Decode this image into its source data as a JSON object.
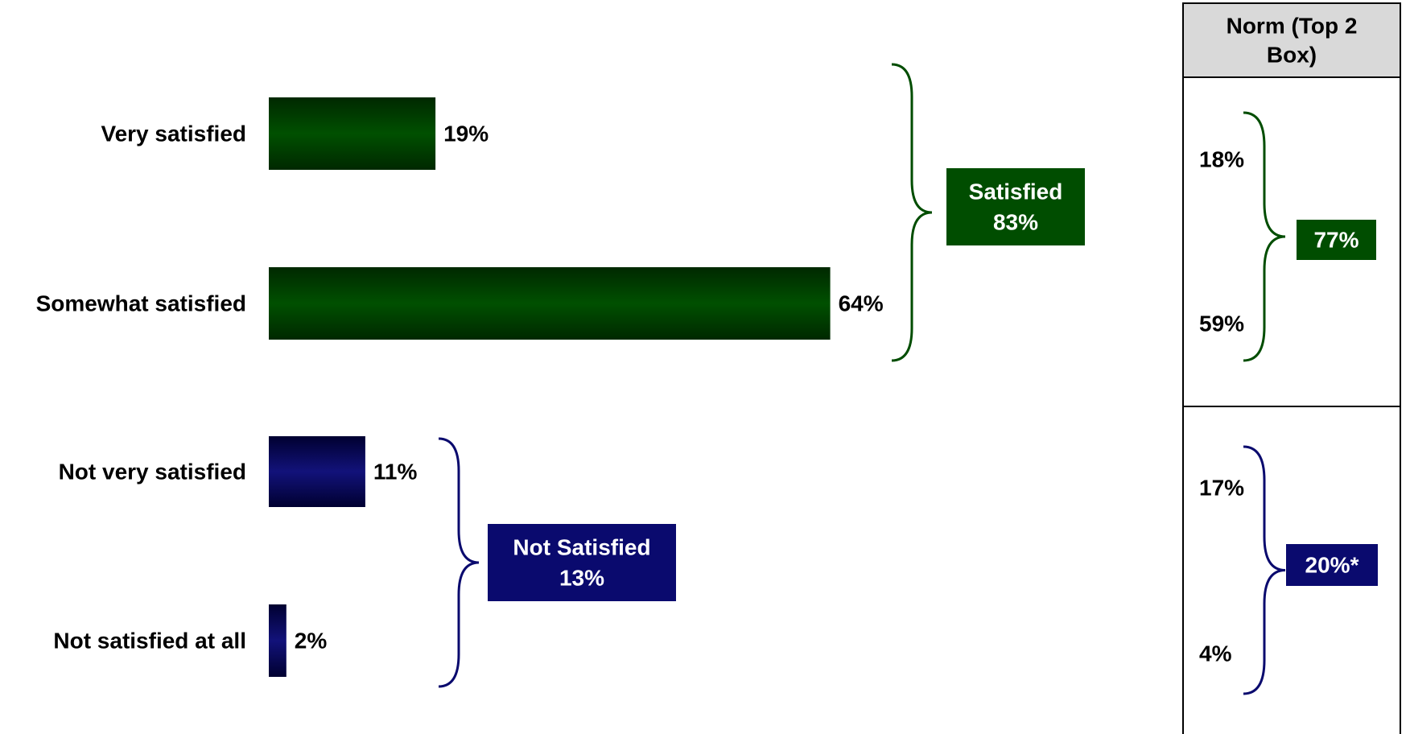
{
  "chart_data": {
    "type": "bar",
    "orientation": "horizontal",
    "title": "",
    "xlabel": "",
    "ylabel": "",
    "grid": false,
    "categories": [
      "Very satisfied",
      "Somewhat satisfied",
      "Not very satisfied",
      "Not satisfied at all"
    ],
    "values": [
      19,
      64,
      11,
      2
    ],
    "value_labels": [
      "19%",
      "64%",
      "11%",
      "2%"
    ],
    "xlim": [
      0,
      100
    ],
    "groups": [
      {
        "label": "Satisfied",
        "value_label": "83%",
        "value": 83,
        "members": [
          0,
          1
        ],
        "color": "#004d00"
      },
      {
        "label": "Not Satisfied",
        "value_label": "13%",
        "value": 13,
        "members": [
          2,
          3
        ],
        "color": "#0a0a6e"
      }
    ],
    "norm_panel": {
      "header": "Norm (Top 2 Box)",
      "sections": [
        {
          "items": [
            "18%",
            "59%"
          ],
          "total": "77%",
          "color": "#004d00"
        },
        {
          "items": [
            "17%",
            "4%"
          ],
          "total": "20%*",
          "color": "#0a0a6e"
        }
      ]
    }
  },
  "colors": {
    "satisfied_dark": "#003300",
    "satisfied": "#004d00",
    "not_satisfied_dark": "#000033",
    "not_satisfied": "#0a0a6e",
    "header_bg": "#d9d9d9",
    "text": "#000000",
    "box_text": "#ffffff"
  }
}
